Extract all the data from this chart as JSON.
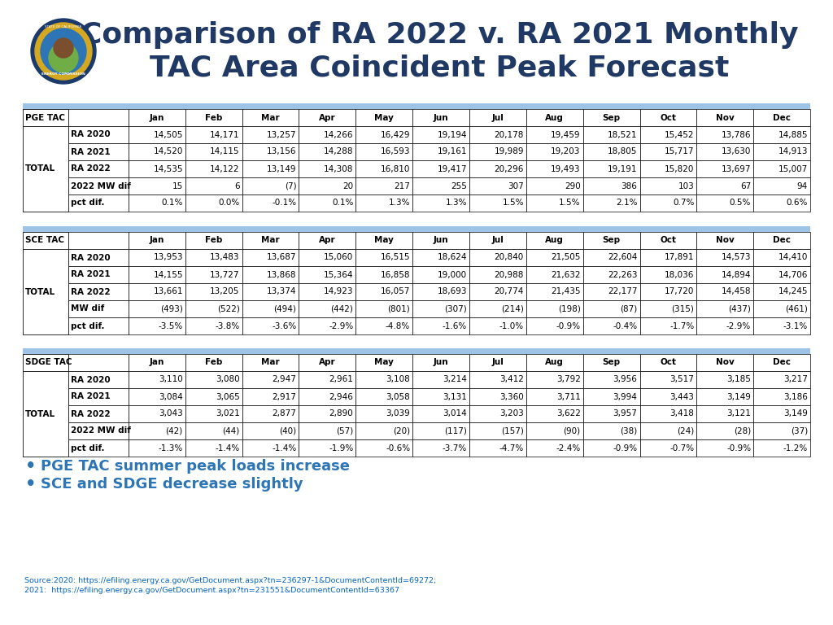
{
  "title_line1": "Comparison of RA 2022 v. RA 2021 Monthly",
  "title_line2": "TAC Area Coincident Peak Forecast",
  "title_color": "#1F3864",
  "background_color": "#FFFFFF",
  "months": [
    "Jan",
    "Feb",
    "Mar",
    "Apr",
    "May",
    "Jun",
    "Jul",
    "Aug",
    "Sep",
    "Oct",
    "Nov",
    "Dec"
  ],
  "pge_label1": "PGE TAC",
  "pge_label2": "TOTAL",
  "pge_rows": [
    {
      "label": "RA 2020",
      "values": [
        "14,505",
        "14,171",
        "13,257",
        "14,266",
        "16,429",
        "19,194",
        "20,178",
        "19,459",
        "18,521",
        "15,452",
        "13,786",
        "14,885"
      ]
    },
    {
      "label": "RA 2021",
      "values": [
        "14,520",
        "14,115",
        "13,156",
        "14,288",
        "16,593",
        "19,161",
        "19,989",
        "19,203",
        "18,805",
        "15,717",
        "13,630",
        "14,913"
      ]
    },
    {
      "label": "RA 2022",
      "values": [
        "14,535",
        "14,122",
        "13,149",
        "14,308",
        "16,810",
        "19,417",
        "20,296",
        "19,493",
        "19,191",
        "15,820",
        "13,697",
        "15,007"
      ]
    },
    {
      "label": "2022 MW dif",
      "values": [
        "15",
        "6",
        "(7)",
        "20",
        "217",
        "255",
        "307",
        "290",
        "386",
        "103",
        "67",
        "94"
      ]
    },
    {
      "label": "pct dif.",
      "values": [
        "0.1%",
        "0.0%",
        "-0.1%",
        "0.1%",
        "1.3%",
        "1.3%",
        "1.5%",
        "1.5%",
        "2.1%",
        "0.7%",
        "0.5%",
        "0.6%"
      ]
    }
  ],
  "sce_label1": "SCE TAC",
  "sce_label2": "TOTAL",
  "sce_rows": [
    {
      "label": "RA 2020",
      "values": [
        "13,953",
        "13,483",
        "13,687",
        "15,060",
        "16,515",
        "18,624",
        "20,840",
        "21,505",
        "22,604",
        "17,891",
        "14,573",
        "14,410"
      ]
    },
    {
      "label": "RA 2021",
      "values": [
        "14,155",
        "13,727",
        "13,868",
        "15,364",
        "16,858",
        "19,000",
        "20,988",
        "21,632",
        "22,263",
        "18,036",
        "14,894",
        "14,706"
      ]
    },
    {
      "label": "RA 2022",
      "values": [
        "13,661",
        "13,205",
        "13,374",
        "14,923",
        "16,057",
        "18,693",
        "20,774",
        "21,435",
        "22,177",
        "17,720",
        "14,458",
        "14,245"
      ]
    },
    {
      "label": "MW dif",
      "values": [
        "(493)",
        "(522)",
        "(494)",
        "(442)",
        "(801)",
        "(307)",
        "(214)",
        "(198)",
        "(87)",
        "(315)",
        "(437)",
        "(461)"
      ]
    },
    {
      "label": "pct dif.",
      "values": [
        "-3.5%",
        "-3.8%",
        "-3.6%",
        "-2.9%",
        "-4.8%",
        "-1.6%",
        "-1.0%",
        "-0.9%",
        "-0.4%",
        "-1.7%",
        "-2.9%",
        "-3.1%"
      ]
    }
  ],
  "sdge_label1": "SDGE TAC",
  "sdge_label2": "TOTAL",
  "sdge_rows": [
    {
      "label": "RA 2020",
      "values": [
        "3,110",
        "3,080",
        "2,947",
        "2,961",
        "3,108",
        "3,214",
        "3,412",
        "3,792",
        "3,956",
        "3,517",
        "3,185",
        "3,217"
      ]
    },
    {
      "label": "RA 2021",
      "values": [
        "3,084",
        "3,065",
        "2,917",
        "2,946",
        "3,058",
        "3,131",
        "3,360",
        "3,711",
        "3,994",
        "3,443",
        "3,149",
        "3,186"
      ]
    },
    {
      "label": "RA 2022",
      "values": [
        "3,043",
        "3,021",
        "2,877",
        "2,890",
        "3,039",
        "3,014",
        "3,203",
        "3,622",
        "3,957",
        "3,418",
        "3,121",
        "3,149"
      ]
    },
    {
      "label": "2022 MW dif",
      "values": [
        "(42)",
        "(44)",
        "(40)",
        "(57)",
        "(20)",
        "(117)",
        "(157)",
        "(90)",
        "(38)",
        "(24)",
        "(28)",
        "(37)"
      ]
    },
    {
      "label": "pct dif.",
      "values": [
        "-1.3%",
        "-1.4%",
        "-1.4%",
        "-1.9%",
        "-0.6%",
        "-3.7%",
        "-4.7%",
        "-2.4%",
        "-0.9%",
        "-0.7%",
        "-0.9%",
        "-1.2%"
      ]
    }
  ],
  "bullets": [
    "PGE TAC summer peak loads increase",
    "SCE and SDGE decrease slightly"
  ],
  "source_line1": "Source:2020: https://efiling.energy.ca.gov/GetDocument.aspx?tn=236297-1&DocumentContentId=69272;",
  "source_line2": "2021:  https://efiling.energy.ca.gov/GetDocument.aspx?tn=231551&DocumentContentId=63367",
  "header_bar_color": "#9DC3E6",
  "table_border_color": "#000000"
}
